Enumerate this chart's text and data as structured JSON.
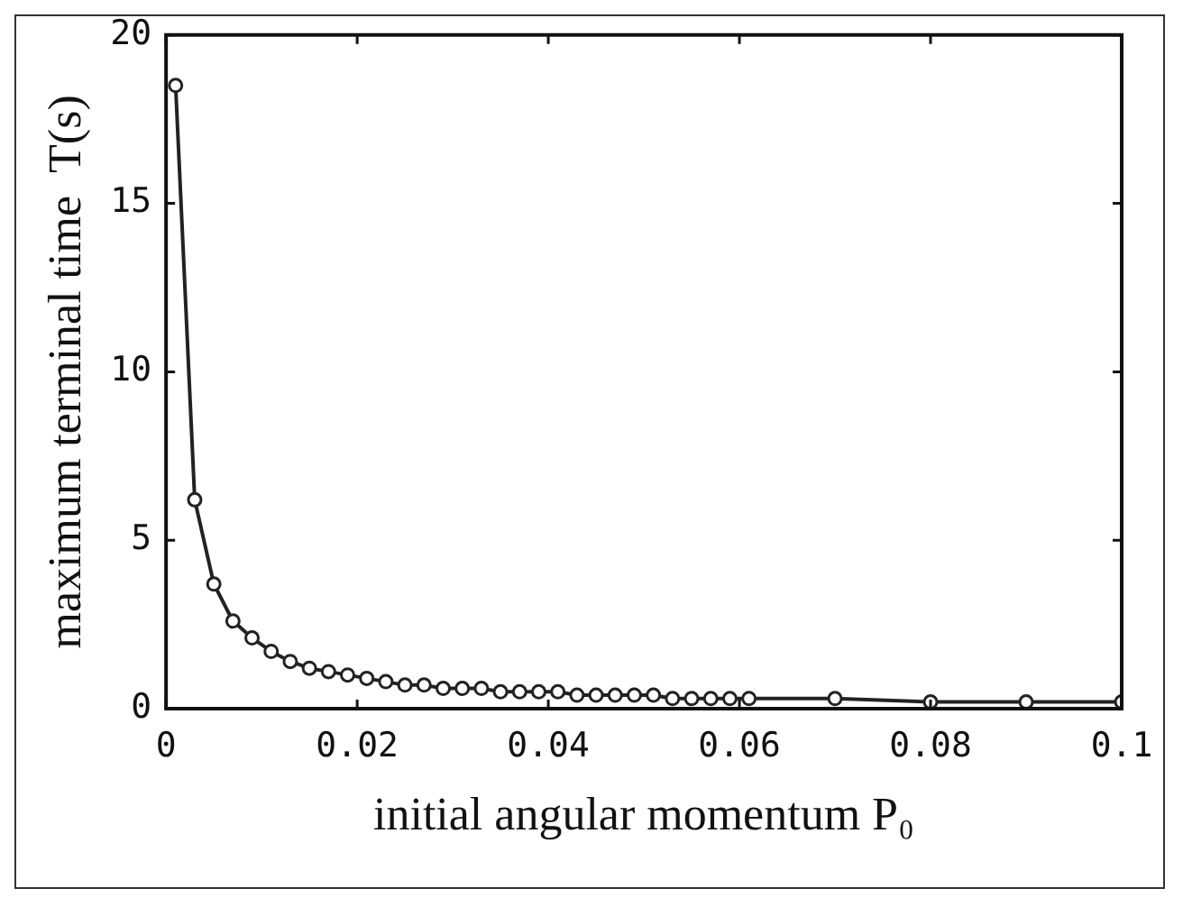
{
  "chart_data": {
    "type": "line",
    "xlabel": "initial angular momentum P₀",
    "ylabel": "maximum terminal time  T(s)",
    "x": [
      0.001,
      0.003,
      0.005,
      0.007,
      0.009,
      0.011,
      0.013,
      0.015,
      0.017,
      0.019,
      0.021,
      0.023,
      0.025,
      0.027,
      0.029,
      0.031,
      0.033,
      0.035,
      0.037,
      0.039,
      0.041,
      0.043,
      0.045,
      0.047,
      0.049,
      0.051,
      0.053,
      0.055,
      0.057,
      0.059,
      0.061,
      0.07,
      0.08,
      0.09,
      0.1
    ],
    "series": [
      {
        "color": "#222222",
        "values": [
          18.5,
          6.2,
          3.7,
          2.6,
          2.1,
          1.7,
          1.4,
          1.2,
          1.1,
          1.0,
          0.9,
          0.8,
          0.7,
          0.7,
          0.6,
          0.6,
          0.6,
          0.5,
          0.5,
          0.5,
          0.5,
          0.4,
          0.4,
          0.4,
          0.4,
          0.4,
          0.3,
          0.3,
          0.3,
          0.3,
          0.3,
          0.3,
          0.2,
          0.2,
          0.2
        ]
      }
    ],
    "xlim": [
      0,
      0.1
    ],
    "xticks": [
      0,
      0.02,
      0.04,
      0.06,
      0.08,
      0.1
    ],
    "ylim": [
      0,
      20
    ],
    "yticks": [
      0,
      5,
      10,
      15,
      20
    ],
    "grid": false,
    "legend": false,
    "marker": "circle",
    "line_style": "solid"
  }
}
